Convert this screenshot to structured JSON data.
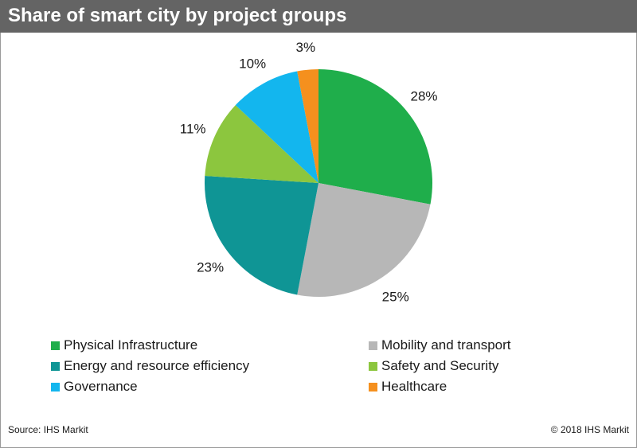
{
  "title": "Share of smart city by project groups",
  "chart_data": {
    "type": "pie",
    "title": "Share of smart city by project groups",
    "slices": [
      {
        "label": "Physical Infrastructure",
        "value": 28,
        "display": "28%",
        "color": "#1fae4b"
      },
      {
        "label": "Mobility and transport",
        "value": 25,
        "display": "25%",
        "color": "#b7b7b7"
      },
      {
        "label": "Energy and resource efficiency",
        "value": 23,
        "display": "23%",
        "color": "#0f9595"
      },
      {
        "label": "Safety and Security",
        "value": 11,
        "display": "11%",
        "color": "#8cc63e"
      },
      {
        "label": "Governance",
        "value": 10,
        "display": "10%",
        "color": "#13b6ee"
      },
      {
        "label": "Healthcare",
        "value": 3,
        "display": "3%",
        "color": "#f5901e"
      }
    ],
    "legend_position": "bottom"
  },
  "legend": [
    {
      "label": "Physical Infrastructure",
      "color": "#1fae4b"
    },
    {
      "label": "Mobility and transport",
      "color": "#b7b7b7"
    },
    {
      "label": "Energy and resource efficiency",
      "color": "#0f9595"
    },
    {
      "label": "Safety and Security",
      "color": "#8cc63e"
    },
    {
      "label": "Governance",
      "color": "#13b6ee"
    },
    {
      "label": "Healthcare",
      "color": "#f5901e"
    }
  ],
  "footer": {
    "source": "Source:  IHS Markit",
    "copyright": "© 2018  IHS Markit"
  }
}
